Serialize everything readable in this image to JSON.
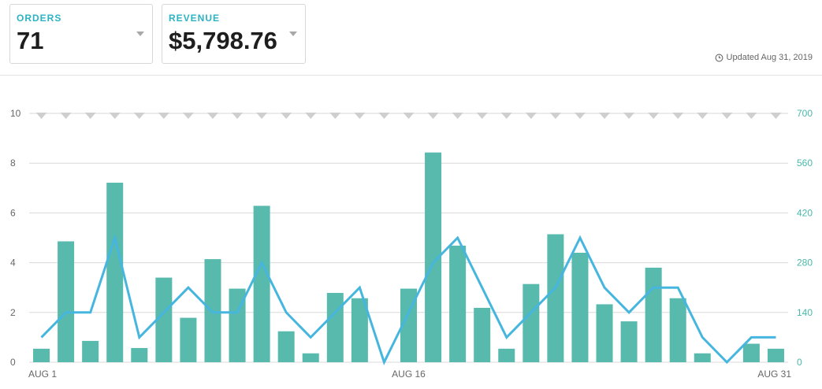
{
  "summary": {
    "orders": {
      "label": "ORDERS",
      "value": "71"
    },
    "revenue": {
      "label": "REVENUE",
      "value": "$5,798.76"
    },
    "updated": "Updated Aug 31, 2019"
  },
  "colors": {
    "bar": "#58b9ad",
    "line": "#46b6df",
    "marker": "#cfcfcf",
    "grid": "#d9d9d9"
  },
  "chart_data": {
    "type": "bar",
    "categories": [
      "1",
      "2",
      "3",
      "4",
      "5",
      "6",
      "7",
      "8",
      "9",
      "10",
      "11",
      "12",
      "13",
      "14",
      "15",
      "16",
      "17",
      "18",
      "19",
      "20",
      "21",
      "22",
      "23",
      "24",
      "25",
      "26",
      "27",
      "28",
      "29",
      "30",
      "31"
    ],
    "x_tick_labels": [
      {
        "index": 0,
        "label": "AUG 1"
      },
      {
        "index": 15,
        "label": "AUG 16"
      },
      {
        "index": 30,
        "label": "AUG 31"
      }
    ],
    "series": [
      {
        "type": "bar",
        "axis": "right",
        "values": [
          38,
          340,
          60,
          505,
          40,
          238,
          125,
          290,
          207,
          440,
          87,
          25,
          195,
          180,
          0,
          207,
          590,
          328,
          153,
          38,
          220,
          360,
          308,
          163,
          115,
          266,
          180,
          25,
          0,
          52,
          38
        ]
      },
      {
        "type": "line",
        "axis": "left",
        "values": [
          1,
          2,
          2,
          5,
          1,
          2,
          3,
          2,
          2,
          4,
          2,
          1,
          2,
          3,
          0,
          2,
          4,
          5,
          3,
          1,
          2,
          3,
          5,
          3,
          2,
          3,
          3,
          1,
          0,
          1,
          1
        ]
      }
    ],
    "y_left": {
      "range": [
        0,
        10
      ],
      "ticks": [
        0,
        2,
        4,
        6,
        8,
        10
      ]
    },
    "y_right": {
      "range": [
        0,
        700
      ],
      "ticks": [
        0,
        140,
        280,
        420,
        560,
        700
      ]
    },
    "grid": true
  }
}
